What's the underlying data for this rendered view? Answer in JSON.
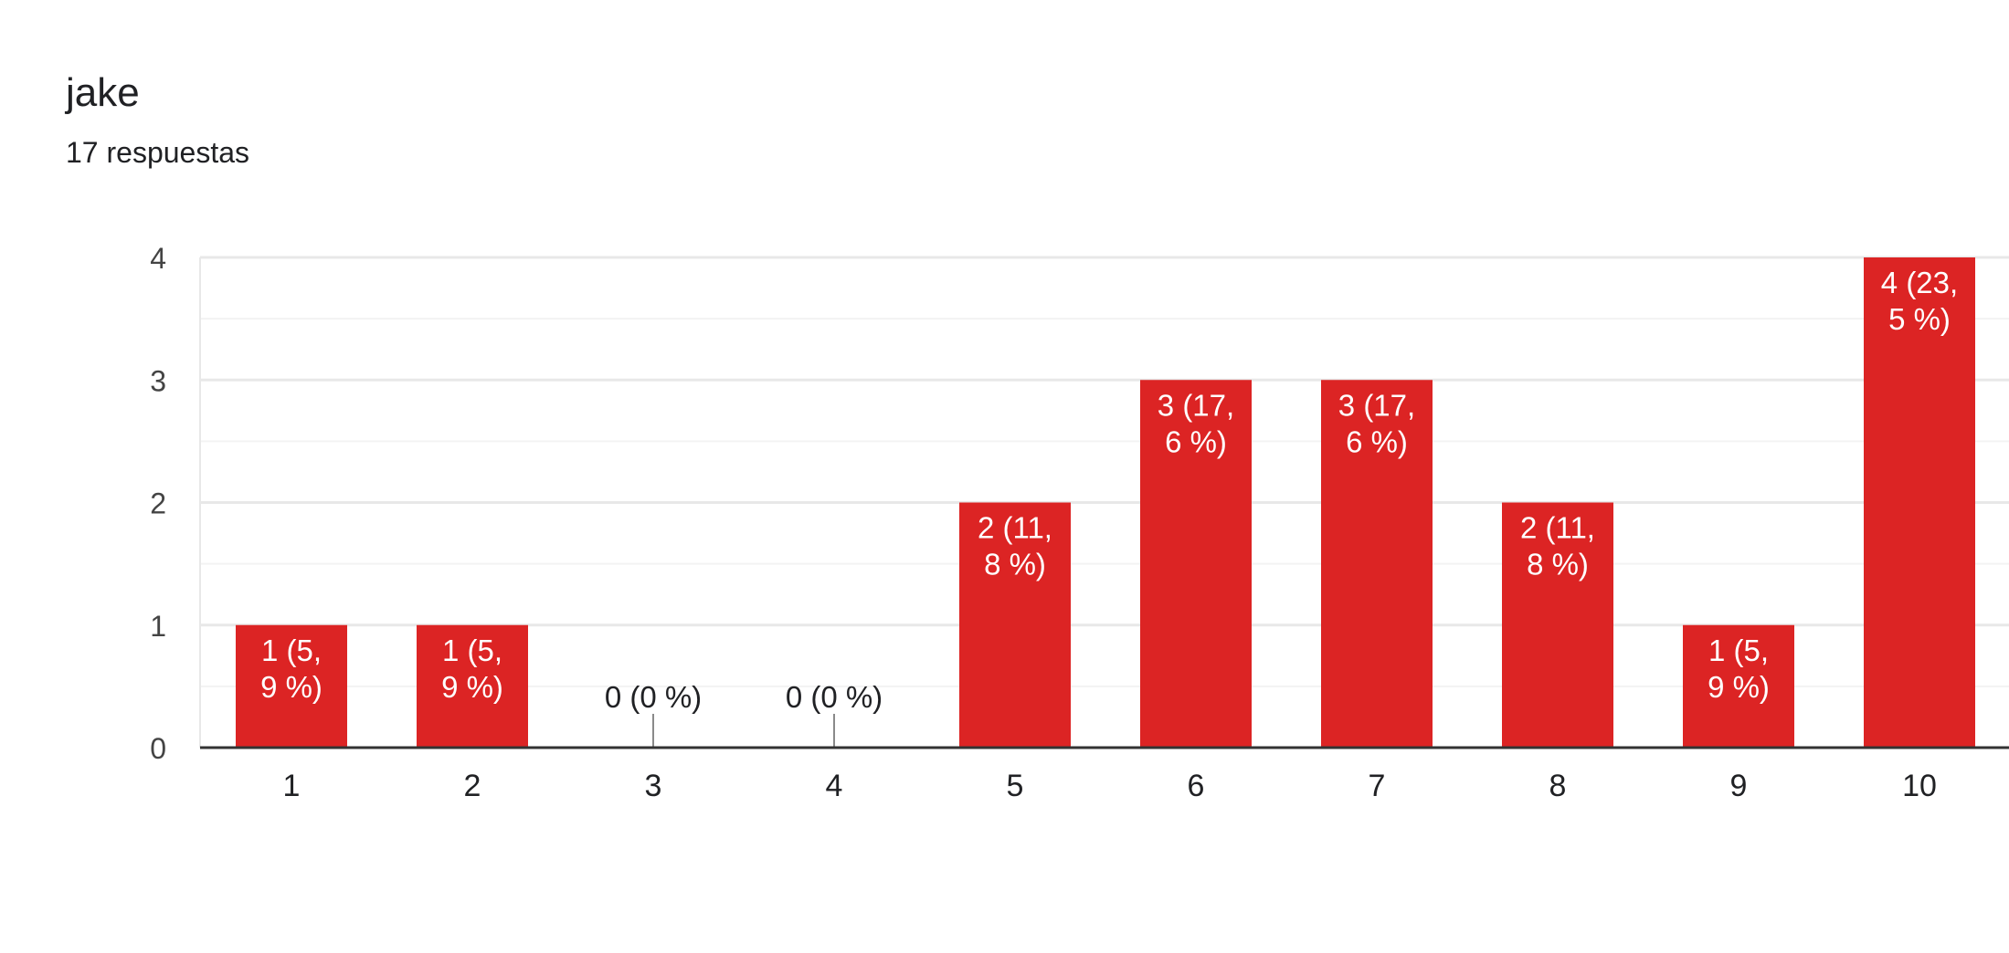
{
  "question": {
    "title": "jake",
    "response_count": "17 respuestas"
  },
  "colors": {
    "bar": "#dc2424",
    "bar_label": "#ffffff",
    "outside_label": "#202124",
    "axis_text": "#444444",
    "grid": "#e8e8e8",
    "grid_minor": "#f3f3f3",
    "baseline": "#333333"
  },
  "chart_data": {
    "type": "bar",
    "title": "",
    "xlabel": "",
    "ylabel": "",
    "categories": [
      "1",
      "2",
      "3",
      "4",
      "5",
      "6",
      "7",
      "8",
      "9",
      "10"
    ],
    "values": [
      1,
      1,
      0,
      0,
      2,
      3,
      3,
      2,
      1,
      4
    ],
    "data_labels": [
      [
        "1 (5,",
        "9 %)"
      ],
      [
        "1 (5,",
        "9 %)"
      ],
      [
        "0 (0 %)"
      ],
      [
        "0 (0 %)"
      ],
      [
        "2 (11,",
        "8 %)"
      ],
      [
        "3 (17,",
        "6 %)"
      ],
      [
        "3 (17,",
        "6 %)"
      ],
      [
        "2 (11,",
        "8 %)"
      ],
      [
        "1 (5,",
        "9 %)"
      ],
      [
        "4 (23,",
        "5 %)"
      ]
    ],
    "yticks": [
      "0",
      "1",
      "2",
      "3",
      "4"
    ],
    "ylim": [
      0,
      4
    ],
    "grid": true,
    "legend": "none"
  }
}
